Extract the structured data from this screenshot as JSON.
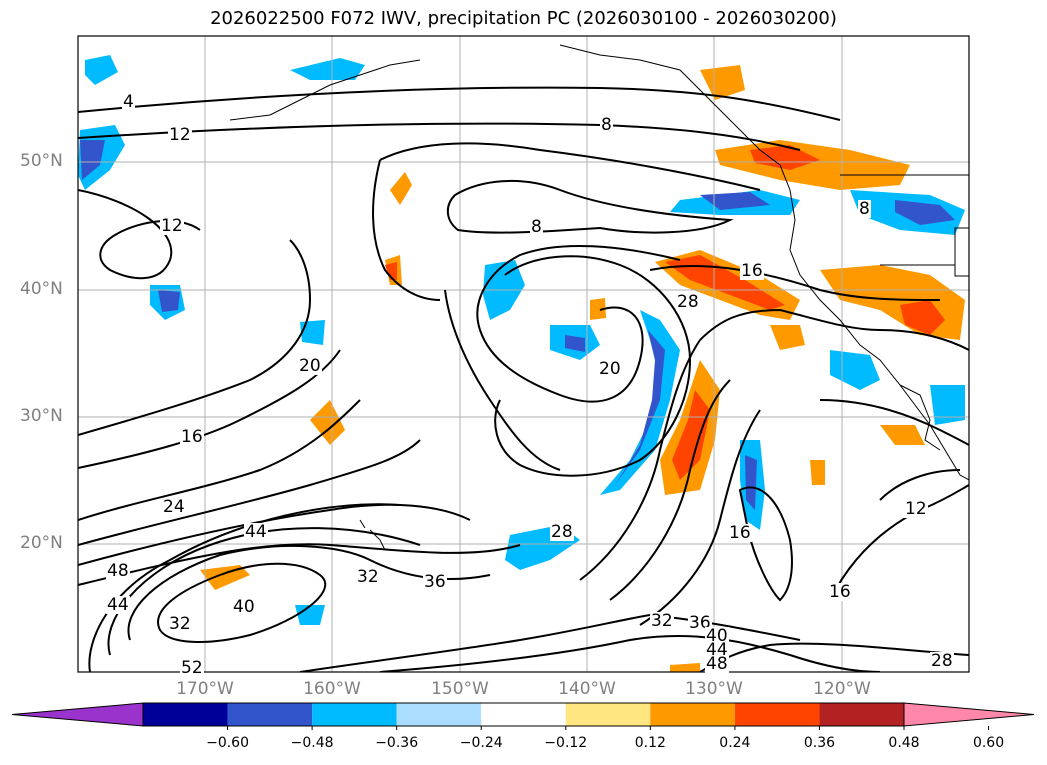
{
  "title": "2026022500 F072 IWV, precipitation PC (2026030100 - 2026030200)",
  "latitude_labels": [
    "50°N",
    "40°N",
    "30°N",
    "20°N"
  ],
  "longitude_labels": [
    "170°W",
    "160°W",
    "150°W",
    "140°W",
    "130°W",
    "120°W"
  ],
  "contour_labels": [
    "4",
    "12",
    "8",
    "12",
    "8",
    "8",
    "16",
    "28",
    "20",
    "20",
    "16",
    "24",
    "44",
    "48",
    "44",
    "32",
    "40",
    "52",
    "32",
    "36",
    "28",
    "32",
    "36",
    "40",
    "44",
    "48",
    "16",
    "16",
    "12",
    "28"
  ],
  "colorbar": {
    "ticks": [
      "−0.60",
      "−0.48",
      "−0.36",
      "−0.24",
      "−0.12",
      "0.12",
      "0.24",
      "0.36",
      "0.48",
      "0.60"
    ],
    "colors": [
      "#9933cc",
      "#000099",
      "#3355cc",
      "#00bbff",
      "#aaddff",
      "#ffffff",
      "#ffe680",
      "#ff9900",
      "#ff4400",
      "#b22222",
      "#ff88aa"
    ]
  }
}
